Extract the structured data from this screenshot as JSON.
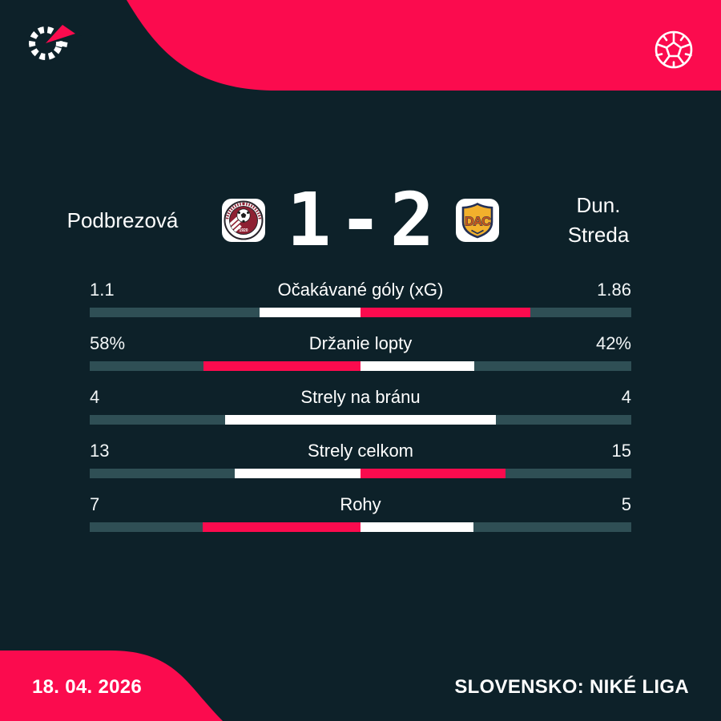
{
  "theme": {
    "background": "#0d2129",
    "accent": "#fb0b4e",
    "bar_track": "#2f4f55",
    "bar_neutral": "#ffffff",
    "text": "#ffffff"
  },
  "header": {
    "logo_icon": "flashscore-logo",
    "ball_icon": "soccer-ball-icon"
  },
  "match": {
    "home": {
      "name": "Podbrezová",
      "crest": "podbrezova-crest"
    },
    "away": {
      "name_line1": "Dun.",
      "name_line2": "Streda",
      "crest": "dac-dunajska-streda-crest"
    },
    "score": {
      "home": "1",
      "separator": "-",
      "away": "2"
    }
  },
  "stats": {
    "rows": [
      {
        "label": "Očakávané góly (xG)",
        "home": "1.1",
        "away": "1.86",
        "home_val": 1.1,
        "away_val": 1.86
      },
      {
        "label": "Držanie lopty",
        "home": "58%",
        "away": "42%",
        "home_val": 58,
        "away_val": 42
      },
      {
        "label": "Strely na bránu",
        "home": "4",
        "away": "4",
        "home_val": 4,
        "away_val": 4
      },
      {
        "label": "Strely celkom",
        "home": "13",
        "away": "15",
        "home_val": 13,
        "away_val": 15
      },
      {
        "label": "Rohy",
        "home": "7",
        "away": "5",
        "home_val": 7,
        "away_val": 5
      }
    ]
  },
  "footer": {
    "date": "18. 04. 2026",
    "league": "SLOVENSKO: NIKÉ LIGA"
  },
  "chart_data": {
    "type": "bar",
    "title": "Podbrezová 1 - 2 Dun. Streda",
    "categories": [
      "Očakávané góly (xG)",
      "Držanie lopty",
      "Strely na bránu",
      "Strely celkom",
      "Rohy"
    ],
    "series": [
      {
        "name": "Podbrezová",
        "values": [
          1.1,
          58,
          4,
          13,
          7
        ]
      },
      {
        "name": "Dun. Streda",
        "values": [
          1.86,
          42,
          4,
          15,
          5
        ]
      }
    ],
    "legend_position": "none",
    "grid": false,
    "layout": "diverging-from-center, leader highlighted in accent pink, tie shown white",
    "annotations": [
      "18. 04. 2026",
      "SLOVENSKO: NIKÉ LIGA"
    ]
  }
}
